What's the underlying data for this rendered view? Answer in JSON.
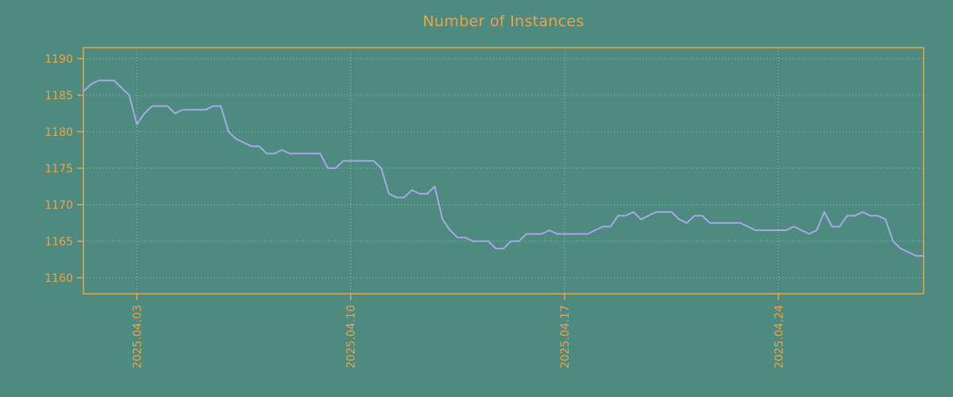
{
  "title": "Number of Instances",
  "colors": {
    "background": "#4d8a80",
    "accent": "#f0a144",
    "line": "#a8a8e8",
    "grid": "#d8e8e2"
  },
  "chart_data": {
    "type": "line",
    "title": "Number of Instances",
    "xlabel": "",
    "ylabel": "",
    "legend": null,
    "grid": true,
    "x_unit": "days since 2025-04-01 00:00",
    "x_start": 0.25,
    "x_step": 0.25,
    "xlim": [
      0.25,
      27.75
    ],
    "ylim": [
      1157.8,
      1191.5
    ],
    "y_ticks": [
      1160,
      1165,
      1170,
      1175,
      1180,
      1185,
      1190
    ],
    "x_ticks": [
      {
        "pos": 2,
        "label": "2025.04.03"
      },
      {
        "pos": 9,
        "label": "2025.04.10"
      },
      {
        "pos": 16,
        "label": "2025.04.17"
      },
      {
        "pos": 23,
        "label": "2025.04.24"
      }
    ],
    "values": [
      1185.5,
      1186.5,
      1187,
      1187,
      1187,
      1186,
      1185,
      1181,
      1182.5,
      1183.5,
      1183.5,
      1183.5,
      1182.5,
      1183,
      1183,
      1183,
      1183,
      1183.5,
      1183.5,
      1180,
      1179,
      1178.5,
      1178,
      1178,
      1177,
      1177,
      1177.5,
      1177,
      1177,
      1177,
      1177,
      1177,
      1175,
      1175,
      1176,
      1176,
      1176,
      1176,
      1176,
      1175,
      1171.5,
      1171,
      1171,
      1172,
      1171.5,
      1171.5,
      1172.5,
      1168,
      1166.5,
      1165.5,
      1165.5,
      1165,
      1165,
      1165,
      1164,
      1164,
      1165,
      1165,
      1166,
      1166,
      1166,
      1166.5,
      1166,
      1166,
      1166,
      1166,
      1166,
      1166.5,
      1167,
      1167,
      1168.5,
      1168.5,
      1169,
      1168,
      1168.5,
      1169,
      1169,
      1169,
      1168,
      1167.5,
      1168.5,
      1168.5,
      1167.5,
      1167.5,
      1167.5,
      1167.5,
      1167.5,
      1167,
      1166.5,
      1166.5,
      1166.5,
      1166.5,
      1166.5,
      1167,
      1166.5,
      1166,
      1166.5,
      1169,
      1167,
      1167,
      1168.5,
      1168.5,
      1169,
      1168.5,
      1168.5,
      1168,
      1165,
      1164,
      1163.5,
      1163,
      1163
    ]
  }
}
